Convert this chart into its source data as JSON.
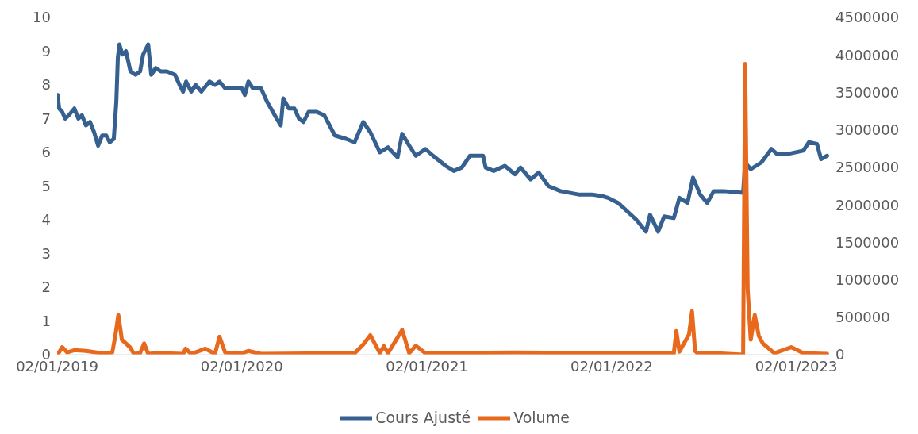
{
  "chart_data": {
    "type": "line",
    "legend": "bottom",
    "xlim": [
      "2019-01-02",
      "2023-03-08"
    ],
    "xticks": [
      {
        "value": "2019-01-02",
        "label": "02/01/2019"
      },
      {
        "value": "2020-01-02",
        "label": "02/01/2020"
      },
      {
        "value": "2021-01-02",
        "label": "02/01/2021"
      },
      {
        "value": "2022-01-02",
        "label": "02/01/2022"
      },
      {
        "value": "2023-01-02",
        "label": "02/01/2023"
      }
    ],
    "ylim": [
      0,
      10
    ],
    "yticks": [
      0,
      1,
      2,
      3,
      4,
      5,
      6,
      7,
      8,
      9,
      10
    ],
    "y2lim": [
      0,
      4500000
    ],
    "y2ticks": [
      0,
      500000,
      1000000,
      1500000,
      2000000,
      2500000,
      3000000,
      3500000,
      4000000,
      4500000
    ],
    "series": [
      {
        "name": "Cours Ajusté",
        "color": "#36608f",
        "x": [
          "2019-01-03",
          "2019-01-06",
          "2019-01-12",
          "2019-01-18",
          "2019-01-25",
          "2019-02-05",
          "2019-02-13",
          "2019-02-20",
          "2019-02-28",
          "2019-03-08",
          "2019-03-16",
          "2019-03-24",
          "2019-04-01",
          "2019-04-09",
          "2019-04-16",
          "2019-04-24",
          "2019-04-29",
          "2019-05-02",
          "2019-05-05",
          "2019-05-11",
          "2019-05-18",
          "2019-05-27",
          "2019-06-06",
          "2019-06-15",
          "2019-06-21",
          "2019-07-01",
          "2019-07-07",
          "2019-07-16",
          "2019-07-26",
          "2019-08-07",
          "2019-08-23",
          "2019-09-01",
          "2019-09-08",
          "2019-09-14",
          "2019-09-24",
          "2019-10-03",
          "2019-10-14",
          "2019-10-30",
          "2019-11-10",
          "2019-11-19",
          "2019-11-30",
          "2019-12-11",
          "2019-12-24",
          "2020-01-02",
          "2020-01-08",
          "2020-01-15",
          "2020-01-24",
          "2020-02-09",
          "2020-02-21",
          "2020-03-11",
          "2020-03-19",
          "2020-03-24",
          "2020-04-04",
          "2020-04-15",
          "2020-04-24",
          "2020-05-03",
          "2020-05-13",
          "2020-05-29",
          "2020-06-13",
          "2020-07-04",
          "2020-07-26",
          "2020-08-12",
          "2020-08-29",
          "2020-09-12",
          "2020-10-01",
          "2020-10-17",
          "2020-11-05",
          "2020-11-14",
          "2020-11-28",
          "2020-12-11",
          "2020-12-30",
          "2021-01-14",
          "2021-02-08",
          "2021-02-24",
          "2021-03-12",
          "2021-03-28",
          "2021-04-23",
          "2021-04-28",
          "2021-05-14",
          "2021-06-05",
          "2021-06-25",
          "2021-07-06",
          "2021-07-26",
          "2021-08-11",
          "2021-08-30",
          "2021-09-23",
          "2021-10-29",
          "2021-11-24",
          "2021-12-15",
          "2021-12-26",
          "2022-01-15",
          "2022-02-20",
          "2022-03-11",
          "2022-03-19",
          "2022-04-04",
          "2022-04-16",
          "2022-05-05",
          "2022-05-16",
          "2022-06-01",
          "2022-06-12",
          "2022-06-26",
          "2022-07-10",
          "2022-07-23",
          "2022-08-12",
          "2022-09-19",
          "2022-09-23",
          "2022-10-04",
          "2022-10-25",
          "2022-11-14",
          "2022-11-25",
          "2022-12-16",
          "2023-01-16",
          "2023-01-27",
          "2023-02-12",
          "2023-02-20",
          "2023-03-04"
        ],
        "values": [
          7.7,
          7.3,
          7.2,
          7.0,
          7.1,
          7.3,
          7.0,
          7.1,
          6.8,
          6.9,
          6.6,
          6.2,
          6.5,
          6.5,
          6.3,
          6.4,
          7.5,
          8.8,
          9.2,
          8.9,
          9.0,
          8.4,
          8.3,
          8.4,
          8.9,
          9.2,
          8.3,
          8.5,
          8.4,
          8.4,
          8.3,
          8.0,
          7.8,
          8.1,
          7.8,
          8.0,
          7.8,
          8.1,
          8.0,
          8.1,
          7.9,
          7.9,
          7.9,
          7.9,
          7.7,
          8.1,
          7.9,
          7.9,
          7.5,
          7.0,
          6.8,
          7.6,
          7.3,
          7.3,
          7.0,
          6.9,
          7.2,
          7.2,
          7.1,
          6.5,
          6.4,
          6.3,
          6.9,
          6.6,
          6.0,
          6.15,
          5.85,
          6.55,
          6.2,
          5.9,
          6.1,
          5.9,
          5.6,
          5.45,
          5.55,
          5.9,
          5.9,
          5.55,
          5.45,
          5.6,
          5.35,
          5.55,
          5.2,
          5.4,
          5.0,
          4.85,
          4.75,
          4.75,
          4.7,
          4.65,
          4.5,
          4.0,
          3.65,
          4.15,
          3.65,
          4.1,
          4.05,
          4.65,
          4.5,
          5.25,
          4.75,
          4.5,
          4.85,
          4.85,
          4.8,
          5.7,
          5.5,
          5.7,
          6.1,
          5.95,
          5.95,
          6.05,
          6.3,
          6.25,
          5.8,
          5.9
        ]
      },
      {
        "name": "Volume",
        "color": "#e8681c",
        "axis": "y2",
        "x": [
          "2019-01-03",
          "2019-01-12",
          "2019-01-22",
          "2019-02-05",
          "2019-02-28",
          "2019-04-01",
          "2019-04-21",
          "2019-04-27",
          "2019-05-03",
          "2019-05-10",
          "2019-05-18",
          "2019-05-26",
          "2019-06-03",
          "2019-06-15",
          "2019-06-23",
          "2019-07-01",
          "2019-07-20",
          "2019-09-08",
          "2019-09-13",
          "2019-09-24",
          "2019-10-22",
          "2019-11-10",
          "2019-11-19",
          "2019-11-30",
          "2020-01-02",
          "2020-01-15",
          "2020-02-09",
          "2020-08-12",
          "2020-08-29",
          "2020-09-12",
          "2020-10-01",
          "2020-10-09",
          "2020-10-17",
          "2020-11-14",
          "2020-11-28",
          "2020-12-11",
          "2020-12-30",
          "2021-06-25",
          "2021-12-26",
          "2022-05-05",
          "2022-05-10",
          "2022-05-16",
          "2022-06-04",
          "2022-06-10",
          "2022-06-16",
          "2022-06-21",
          "2022-07-23",
          "2022-09-19",
          "2022-09-23",
          "2022-09-28",
          "2022-10-04",
          "2022-10-12",
          "2022-10-20",
          "2022-10-28",
          "2022-11-09",
          "2022-11-20",
          "2022-12-23",
          "2023-01-16",
          "2023-03-04"
        ],
        "values": [
          0,
          100000,
          30000,
          60000,
          50000,
          20000,
          30000,
          250000,
          530000,
          200000,
          150000,
          100000,
          10000,
          20000,
          150000,
          10000,
          20000,
          10000,
          80000,
          10000,
          80000,
          10000,
          240000,
          30000,
          20000,
          50000,
          10000,
          20000,
          135000,
          260000,
          20000,
          115000,
          20000,
          330000,
          20000,
          120000,
          20000,
          30000,
          20000,
          20000,
          315000,
          40000,
          270000,
          580000,
          50000,
          20000,
          20000,
          0,
          3880000,
          875000,
          200000,
          530000,
          250000,
          150000,
          80000,
          20000,
          100000,
          20000,
          10000
        ]
      }
    ]
  }
}
